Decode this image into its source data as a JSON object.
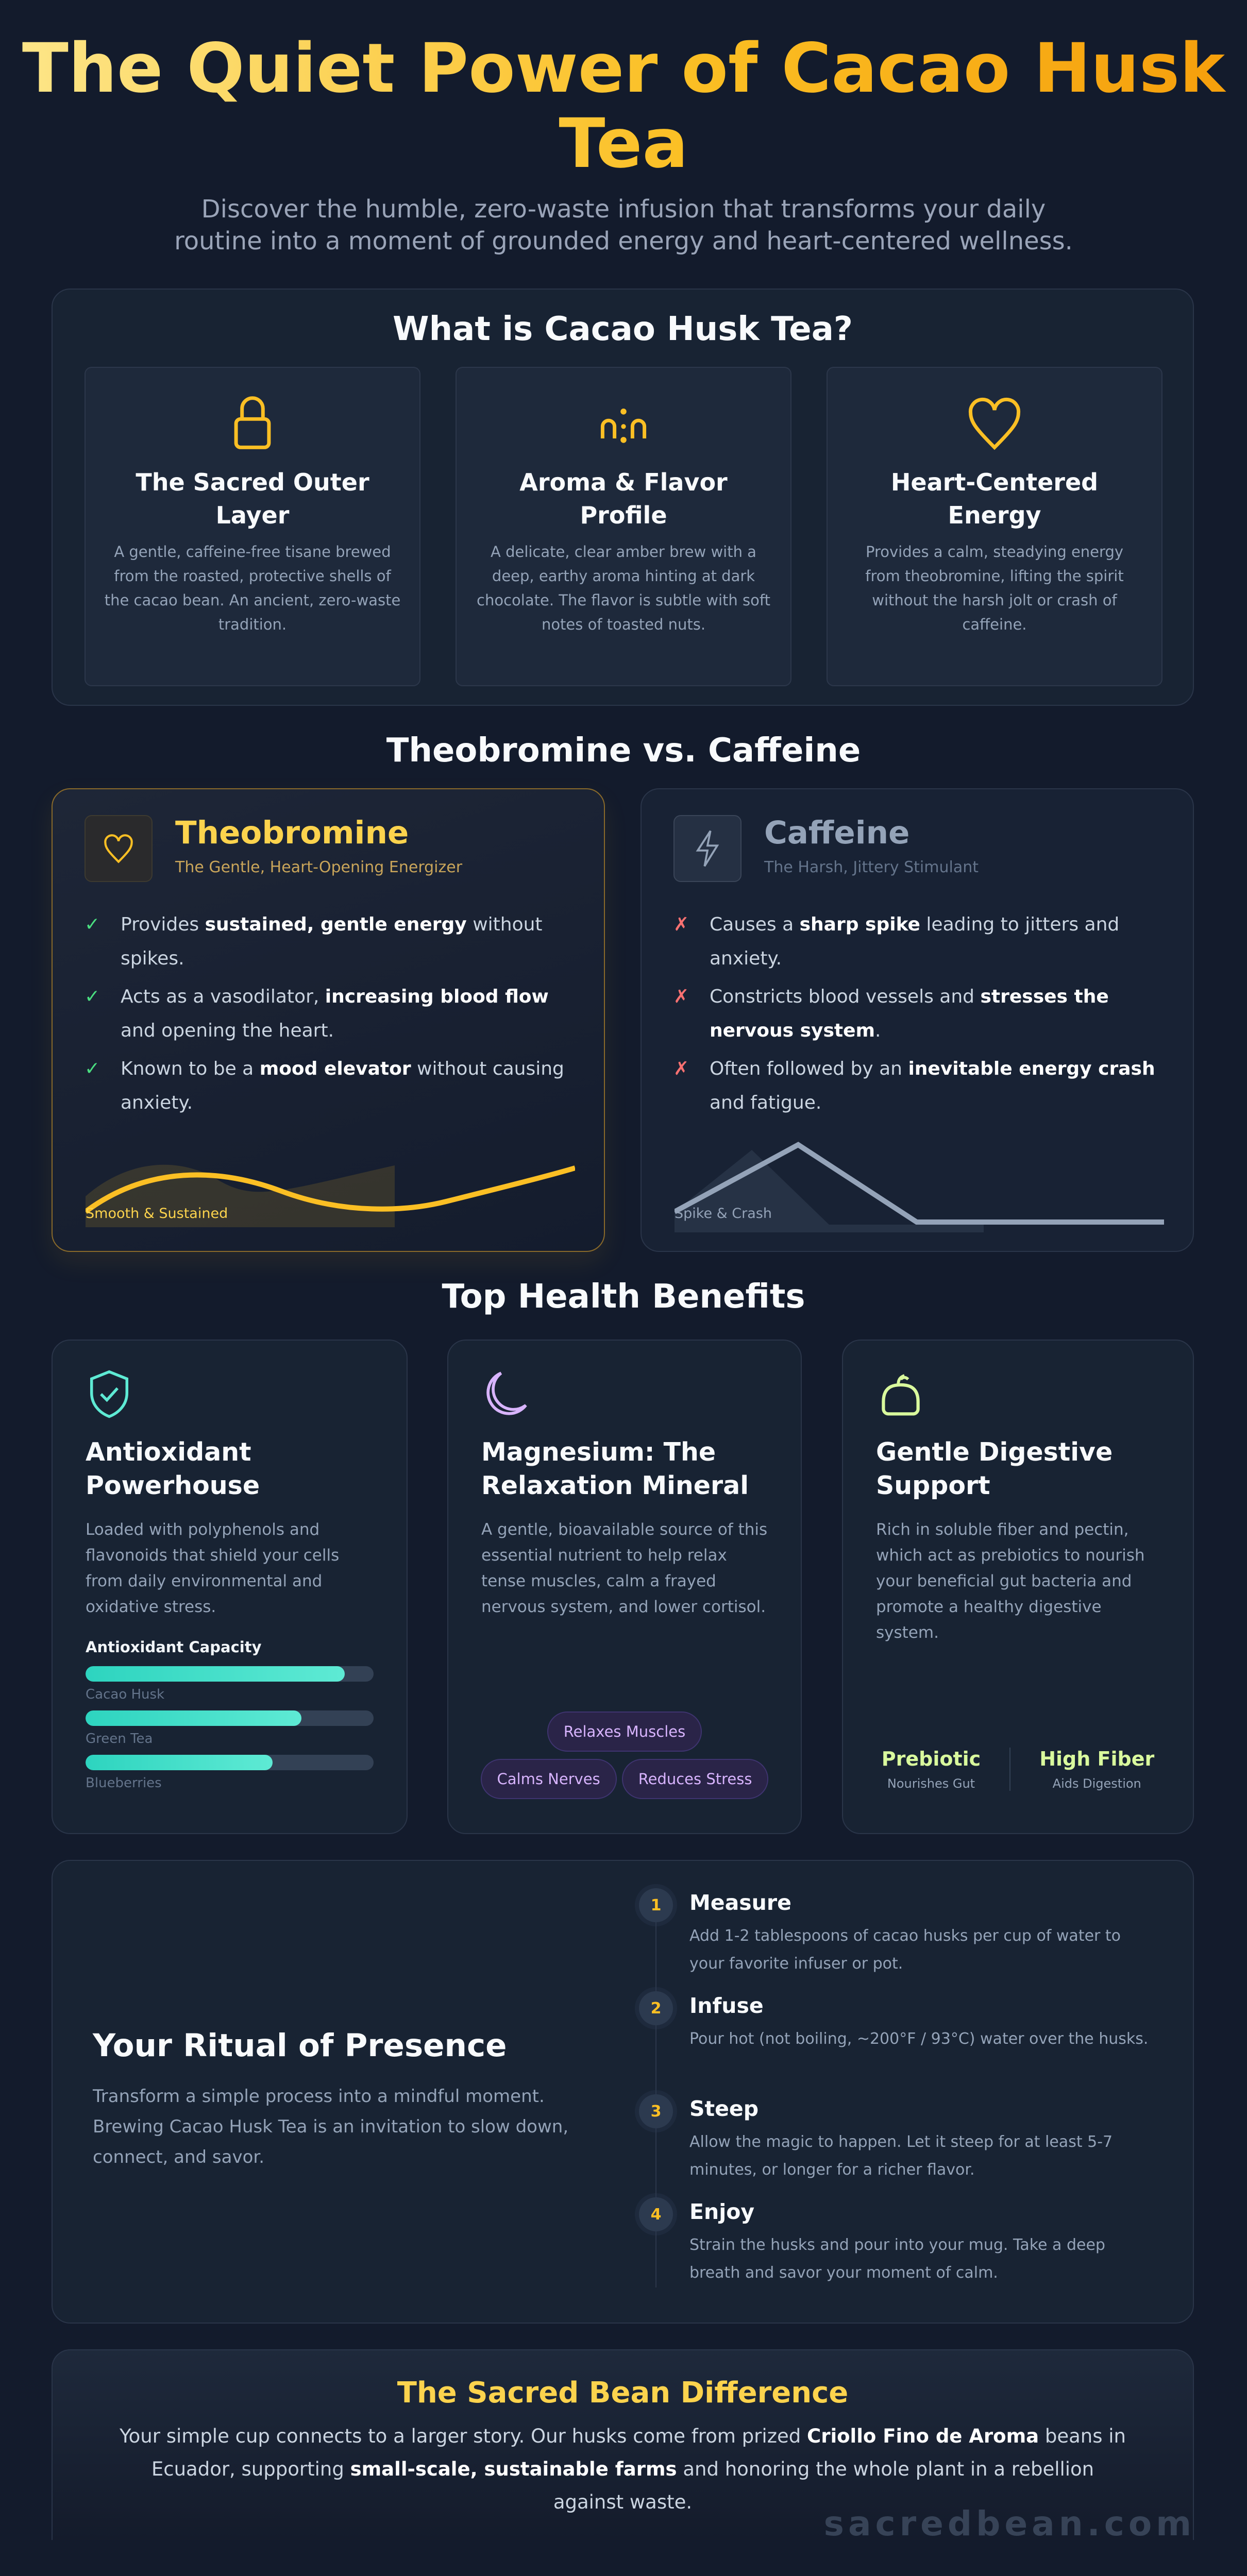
{
  "hero": {
    "title": "The Quiet Power of Cacao Husk Tea",
    "subtitle": "Discover the humble, zero-waste infusion that transforms your daily routine into a moment of grounded energy and heart-centered wellness."
  },
  "what": {
    "heading": "What is Cacao Husk Tea?",
    "cards": [
      {
        "icon": "lock-icon",
        "title": "The Sacred Outer Layer",
        "text": "A gentle, caffeine-free tisane brewed from the roasted, protective shells of the cacao bean. An ancient, zero-waste tradition."
      },
      {
        "icon": "aroma-icon",
        "title": "Aroma & Flavor Profile",
        "text": "A delicate, clear amber brew with a deep, earthy aroma hinting at dark chocolate. The flavor is subtle with soft notes of toasted nuts."
      },
      {
        "icon": "heart-icon",
        "title": "Heart-Centered Energy",
        "text": "Provides a calm, steadying energy from theobromine, lifting the spirit without the harsh jolt or crash of caffeine."
      }
    ]
  },
  "compare": {
    "heading": "Theobromine vs. Caffeine",
    "theo": {
      "title": "Theobromine",
      "subtitle": "The Gentle, Heart-Opening Energizer",
      "chart_label": "Smooth & Sustained",
      "points": [
        {
          "pre": "Provides ",
          "bold": "sustained, gentle energy",
          "post": " without spikes."
        },
        {
          "pre": "Acts as a vasodilator, ",
          "bold": "increasing blood flow",
          "post": " and opening the heart."
        },
        {
          "pre": "Known to be a ",
          "bold": "mood elevator",
          "post": " without causing anxiety."
        }
      ]
    },
    "caf": {
      "title": "Caffeine",
      "subtitle": "The Harsh, Jittery Stimulant",
      "chart_label": "Spike & Crash",
      "points": [
        {
          "pre": "Causes a ",
          "bold": "sharp spike",
          "post": " leading to jitters and anxiety."
        },
        {
          "pre": "Constricts blood vessels and ",
          "bold": "stresses the nervous system",
          "post": "."
        },
        {
          "pre": "Often followed by an ",
          "bold": "inevitable energy crash",
          "post": " and fatigue."
        }
      ]
    }
  },
  "benefits": {
    "heading": "Top Health Benefits",
    "antioxidant": {
      "title": "Antioxidant Powerhouse",
      "text": "Loaded with polyphenols and flavonoids that shield your cells from daily environmental and oxidative stress.",
      "capacity_label": "Antioxidant Capacity",
      "bars": [
        {
          "label": "Cacao Husk",
          "value": 90
        },
        {
          "label": "Green Tea",
          "value": 75
        },
        {
          "label": "Blueberries",
          "value": 65
        }
      ]
    },
    "magnesium": {
      "title": "Magnesium: The Relaxation Mineral",
      "text": "A gentle, bioavailable source of this essential nutrient to help relax tense muscles, calm a frayed nervous system, and lower cortisol.",
      "tags": [
        "Relaxes Muscles",
        "Calms Nerves",
        "Reduces Stress"
      ]
    },
    "digestive": {
      "title": "Gentle Digestive Support",
      "text": "Rich in soluble fiber and pectin, which act as prebiotics to nourish your beneficial gut bacteria and promote a healthy digestive system.",
      "stats": [
        {
          "value": "Prebiotic",
          "label": "Nourishes Gut"
        },
        {
          "value": "High Fiber",
          "label": "Aids Digestion"
        }
      ]
    }
  },
  "ritual": {
    "title": "Your Ritual of Presence",
    "text": "Transform a simple process into a mindful moment. Brewing Cacao Husk Tea is an invitation to slow down, connect, and savor.",
    "steps": [
      {
        "num": "1",
        "title": "Measure",
        "text": "Add 1-2 tablespoons of cacao husks per cup of water to your favorite infuser or pot."
      },
      {
        "num": "2",
        "title": "Infuse",
        "text": "Pour hot (not boiling, ~200°F / 93°C) water over the husks."
      },
      {
        "num": "3",
        "title": "Steep",
        "text": "Allow the magic to happen. Let it steep for at least 5-7 minutes, or longer for a richer flavor."
      },
      {
        "num": "4",
        "title": "Enjoy",
        "text": "Strain the husks and pour into your mug. Take a deep breath and savor your moment of calm."
      }
    ]
  },
  "difference": {
    "title": "The Sacred Bean Difference",
    "p1": "Your simple cup connects to a larger story. Our husks come from prized ",
    "b1": "Criollo Fino de Aroma",
    "p2": " beans in Ecuador, supporting ",
    "b2": "small-scale, sustainable farms",
    "p3": " and honoring the whole plant in a rebellion against waste."
  },
  "watermark": "sacredbean.com",
  "colors": {
    "gold": "#fbbf24",
    "teal": "#2dd4bf",
    "lavender": "#d8b4fe",
    "lime": "#d9f99d",
    "check": "#4ade80",
    "cross": "#f87171"
  }
}
